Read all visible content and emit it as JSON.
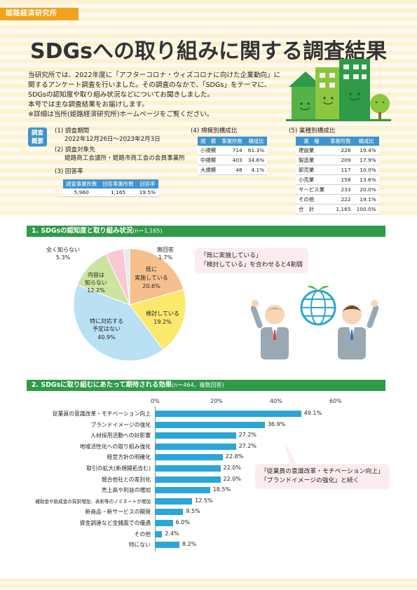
{
  "header": {
    "org_tag": "姫路経済研究所",
    "title": "SDGsへの取り組みに関する調査結果"
  },
  "intro": [
    "当研究所では、2022年度に「アフターコロナ・ウィズコロナに向けた企業動向」に",
    "関するアンケート調査を行いました。その調査のなかで、「SDGs」をテーマに、",
    "SDGsの認知度や取り組み状況などについてお聞きしました。",
    "本号では主な調査結果をお届けします。",
    "※詳細は当所(姫路経済研究所)ホームページをご覧ください。"
  ],
  "overview": {
    "badge": "調査概要",
    "period_head": "(1) 調査期間",
    "period_val": "2022年12月26日～2023年2月3日",
    "target_head": "(2) 調査対象先",
    "target_val": "姫路商工会議所・姫路市商工会の会員事業所",
    "response_head": "(3) 回答率",
    "response_table": {
      "headers": [
        "調査事業所数",
        "回答事業所数",
        "回答率"
      ],
      "row": [
        "5,960",
        "1,165",
        "19.5%"
      ]
    },
    "scale_head": "(4) 規模別構成比",
    "scale_table": {
      "headers": [
        "規　模",
        "事業所数",
        "構成比"
      ],
      "rows": [
        [
          "小規模",
          "714",
          "61.3%"
        ],
        [
          "中規模",
          "403",
          "34.6%"
        ],
        [
          "大規模",
          "48",
          "4.1%"
        ]
      ]
    },
    "industry_head": "(5) 業種別構成比",
    "industry_table": {
      "headers": [
        "業　種",
        "事業所数",
        "構成比"
      ],
      "rows": [
        [
          "建設業",
          "226",
          "19.4%"
        ],
        [
          "製造業",
          "209",
          "17.9%"
        ],
        [
          "卸売業",
          "117",
          "10.0%"
        ],
        [
          "小売業",
          "158",
          "13.6%"
        ],
        [
          "サービス業",
          "233",
          "20.0%"
        ],
        [
          "その他",
          "222",
          "19.1%"
        ],
        [
          "合　計",
          "1,165",
          "100.0%"
        ]
      ]
    }
  },
  "section1": {
    "title": "1. SDGsの認知度と取り組み状況",
    "note": "(n＝1,165)",
    "callout_line1": "「既に実施している」",
    "callout_line2": "「検討している」を合わせると4割弱"
  },
  "section2": {
    "title": "2. SDGsに取り組むにあたって期待される効果",
    "note": "(n＝464、複数回答)",
    "callout_line1": "「従業員の意識改革・モチベーション向上」",
    "callout_line2": "「ブランドイメージの強化」と続く"
  },
  "chart_data": [
    {
      "type": "pie",
      "slices": [
        {
          "label": "既に実施している",
          "value": 20.6,
          "color": "#f6c08e"
        },
        {
          "label": "検討している",
          "value": 19.2,
          "color": "#fbe96b"
        },
        {
          "label": "特に対応する予定はない",
          "value": 40.9,
          "color": "#b9e0f3"
        },
        {
          "label": "内容は知らない",
          "value": 12.2,
          "color": "#cde4a0"
        },
        {
          "label": "全く知らない",
          "value": 5.3,
          "color": "#f8c8d3"
        },
        {
          "label": "無回答",
          "value": 1.7,
          "color": "#e8e8e8"
        }
      ],
      "labels": {
        "s0a": "既に",
        "s0b": "実施している",
        "s0c": "20.6%",
        "s1a": "検討している",
        "s1b": "19.2%",
        "s2a": "特に対応する",
        "s2b": "予定はない",
        "s2c": "40.9%",
        "s3a": "内容は",
        "s3b": "知らない",
        "s3c": "12.2%",
        "s4a": "全く知らない",
        "s4b": "5.3%",
        "s5a": "無回答",
        "s5b": "1.7%"
      }
    },
    {
      "type": "bar",
      "orientation": "horizontal",
      "xlim": [
        0,
        60
      ],
      "xticks": [
        "0%",
        "20%",
        "40%",
        "60%"
      ],
      "bar_color": "#2ba6d6",
      "categories": [
        "従業員の意識改革・モチベーション向上",
        "ブランドイメージの強化",
        "人材採用活動への好影響",
        "地域活性化への取り組み強化",
        "経営方針の明確化",
        "取引の拡大(新規開拓含む)",
        "競合他社との差別化",
        "売上高や利益の増加",
        "補助金や助成金の採択増加、表彰等のノミネートが増加",
        "新商品・新サービスの開発",
        "資金調達など金銭面での優遇",
        "その他",
        "特にない"
      ],
      "values": [
        49.1,
        36.9,
        27.2,
        27.2,
        22.8,
        22.0,
        22.0,
        18.5,
        12.5,
        9.5,
        6.0,
        2.4,
        8.2
      ],
      "value_labels": [
        "49.1%",
        "36.9%",
        "27.2%",
        "27.2%",
        "22.8%",
        "22.0%",
        "22.0%",
        "18.5%",
        "12.5%",
        "9.5%",
        "6.0%",
        "2.4%",
        "8.2%"
      ]
    }
  ]
}
